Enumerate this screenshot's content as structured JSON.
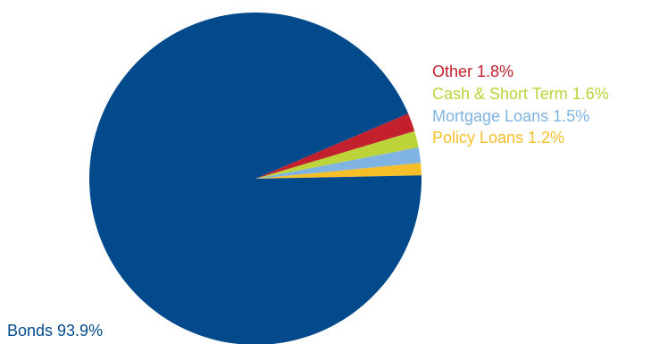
{
  "chart_data": {
    "type": "pie",
    "slices": [
      {
        "name": "Bonds",
        "value": 93.9,
        "label": "Bonds 93.9%",
        "color": "#034a8d"
      },
      {
        "name": "Policy Loans",
        "value": 1.2,
        "label": "Policy Loans 1.2%",
        "color": "#f6bf28"
      },
      {
        "name": "Mortgage Loans",
        "value": 1.5,
        "label": "Mortgage Loans 1.5%",
        "color": "#7fb3e1"
      },
      {
        "name": "Cash & Short Term",
        "value": 1.6,
        "label": "Cash & Short Term 1.6%",
        "color": "#bcd33a"
      },
      {
        "name": "Other",
        "value": 1.8,
        "label": "Other 1.8%",
        "color": "#c3202e"
      }
    ],
    "legend": "labels beside slices"
  }
}
